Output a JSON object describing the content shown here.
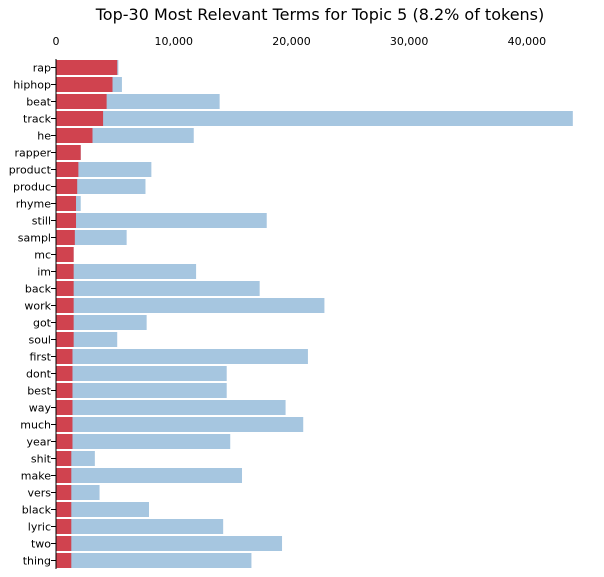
{
  "chart_data": {
    "type": "bar",
    "orientation": "horizontal",
    "stacking": "overlay",
    "title": "Top-30 Most Relevant Terms for Topic 5 (8.2% of tokens)",
    "xlabel": "",
    "ylabel": "",
    "xlim": [
      0,
      44000
    ],
    "x_ticks": [
      0,
      10000,
      20000,
      30000,
      40000
    ],
    "x_tick_labels": [
      "0",
      "10,000",
      "20,000",
      "30,000",
      "40,000"
    ],
    "x_axis_position": "top",
    "grid": false,
    "legend": "none",
    "colors": {
      "overall": "#a6c6e0",
      "topic": "#d0434f"
    },
    "categories": [
      "rap",
      "hiphop",
      "beat",
      "track",
      "he",
      "rapper",
      "product",
      "produc",
      "rhyme",
      "still",
      "sampl",
      "mc",
      "im",
      "back",
      "work",
      "got",
      "soul",
      "first",
      "dont",
      "best",
      "way",
      "much",
      "year",
      "shit",
      "make",
      "vers",
      "black",
      "lyric",
      "two",
      "thing"
    ],
    "series": [
      {
        "role": "overall",
        "values": [
          5300,
          5600,
          13900,
          43900,
          11700,
          2100,
          8100,
          7600,
          2100,
          17900,
          6000,
          1500,
          11900,
          17300,
          22800,
          7700,
          5200,
          21400,
          14500,
          14500,
          19500,
          21000,
          14800,
          3300,
          15800,
          3700,
          7900,
          14200,
          19200,
          16600
        ]
      },
      {
        "role": "topic",
        "values": [
          5200,
          4800,
          4300,
          4000,
          3100,
          2100,
          1900,
          1800,
          1700,
          1700,
          1600,
          1500,
          1500,
          1500,
          1500,
          1500,
          1500,
          1400,
          1400,
          1400,
          1400,
          1400,
          1400,
          1300,
          1300,
          1300,
          1300,
          1300,
          1300,
          1300
        ]
      }
    ]
  }
}
